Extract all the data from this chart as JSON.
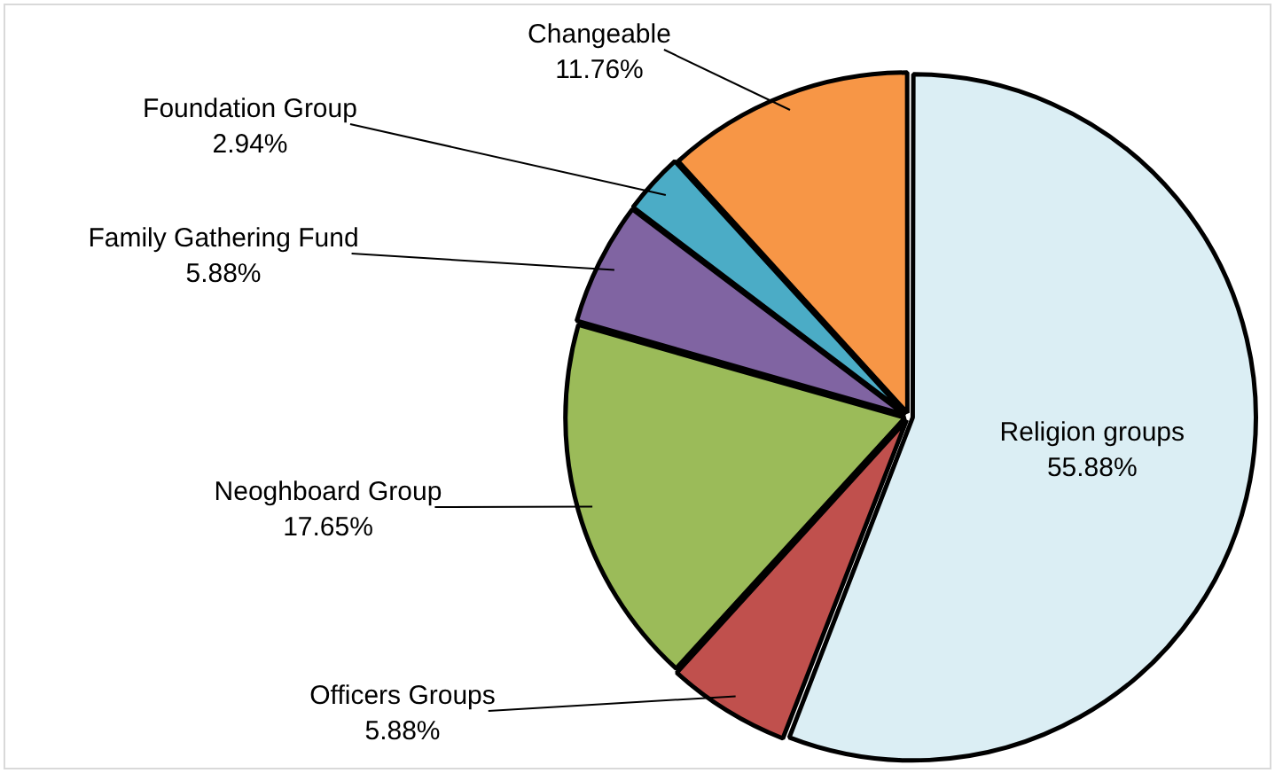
{
  "chart_data": {
    "type": "pie",
    "categories": [
      "Religion groups",
      "Officers Groups",
      "Neoghboard Group",
      "Family Gathering Fund",
      "Foundation Group",
      "Changeable"
    ],
    "values": [
      55.88,
      5.88,
      17.65,
      5.88,
      2.94,
      11.76
    ],
    "value_labels": [
      "55.88%",
      "5.88%",
      "17.65%",
      "5.88%",
      "2.94%",
      "11.76%"
    ],
    "colors": [
      "#dbeef4",
      "#c0504d",
      "#9bbb59",
      "#8064a2",
      "#4bacc6",
      "#f79646"
    ],
    "legend": false
  }
}
